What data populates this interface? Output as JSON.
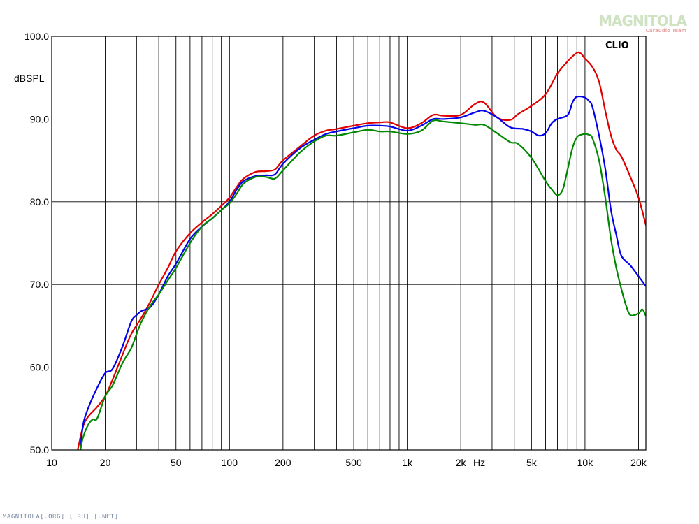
{
  "chart_data": {
    "type": "line",
    "brand": "CLIO",
    "ylabel": "dBSPL",
    "xunit": "Hz",
    "xscale": "log",
    "xlim": [
      10,
      22000
    ],
    "ylim": [
      50,
      100
    ],
    "grid": true,
    "x_ticks": [
      {
        "value": 10,
        "label": "10"
      },
      {
        "value": 20,
        "label": "20"
      },
      {
        "value": 50,
        "label": "50"
      },
      {
        "value": 100,
        "label": "100"
      },
      {
        "value": 200,
        "label": "200"
      },
      {
        "value": 500,
        "label": "500"
      },
      {
        "value": 1000,
        "label": "1k"
      },
      {
        "value": 2000,
        "label": "2k"
      },
      {
        "value": 5000,
        "label": "5k"
      },
      {
        "value": 10000,
        "label": "10k"
      },
      {
        "value": 20000,
        "label": "20k"
      }
    ],
    "y_ticks": [
      {
        "value": 50,
        "label": "50.0"
      },
      {
        "value": 60,
        "label": "60.0"
      },
      {
        "value": 70,
        "label": "70.0"
      },
      {
        "value": 80,
        "label": "80.0"
      },
      {
        "value": 90,
        "label": "90.0"
      },
      {
        "value": 100,
        "label": "100.0"
      }
    ],
    "series": [
      {
        "color": "#e00000",
        "x": [
          14,
          15,
          16,
          18,
          20,
          22,
          25,
          28,
          32,
          36,
          40,
          45,
          50,
          60,
          70,
          80,
          90,
          100,
          110,
          120,
          140,
          160,
          180,
          200,
          250,
          300,
          350,
          400,
          500,
          600,
          700,
          800,
          1000,
          1200,
          1400,
          1600,
          2000,
          2400,
          2700,
          3200,
          3800,
          4200,
          5000,
          6000,
          7000,
          8000,
          9000,
          9500,
          10000,
          11000,
          12000,
          13000,
          14000,
          15000,
          16000,
          18000,
          20000,
          22000
        ],
        "y": [
          50,
          52.8,
          54,
          55.2,
          56.5,
          58.5,
          61.5,
          64,
          66,
          68,
          70,
          72,
          74,
          76.2,
          77.5,
          78.5,
          79.5,
          80.5,
          81.8,
          82.8,
          83.6,
          83.7,
          83.9,
          85,
          86.7,
          88,
          88.6,
          88.8,
          89.2,
          89.5,
          89.6,
          89.6,
          88.9,
          89.5,
          90.5,
          90.4,
          90.5,
          91.8,
          92,
          90.2,
          89.9,
          90.6,
          91.6,
          93,
          95.5,
          97,
          98,
          97.9,
          97.3,
          96.3,
          94.5,
          91,
          88,
          86.3,
          85.5,
          83,
          80.5,
          77.2
        ]
      },
      {
        "color": "#0000ee",
        "x": [
          14.5,
          15,
          16,
          18,
          20,
          22,
          25,
          28,
          30,
          32,
          36,
          40,
          45,
          50,
          60,
          70,
          80,
          90,
          100,
          110,
          120,
          140,
          160,
          180,
          200,
          250,
          300,
          350,
          400,
          500,
          600,
          700,
          800,
          1000,
          1200,
          1400,
          1600,
          2000,
          2400,
          2700,
          3200,
          3800,
          4500,
          5000,
          5500,
          6000,
          6500,
          7000,
          8000,
          8500,
          9000,
          10000,
          10500,
          11000,
          12000,
          13000,
          14000,
          15000,
          16000,
          18000,
          20000,
          22000
        ],
        "y": [
          50,
          53,
          55,
          57.5,
          59.3,
          59.8,
          62.5,
          65.5,
          66.3,
          66.8,
          67.3,
          68.8,
          71,
          72.5,
          75.5,
          77,
          78,
          79,
          80,
          81.5,
          82.5,
          83.1,
          83.2,
          83.3,
          84.6,
          86.5,
          87.5,
          88.2,
          88.5,
          88.9,
          89.2,
          89.2,
          89.1,
          88.6,
          89.2,
          90,
          90,
          90.2,
          90.8,
          91,
          90.2,
          89,
          88.8,
          88.5,
          88,
          88.3,
          89.5,
          90,
          90.5,
          92,
          92.7,
          92.6,
          92.2,
          91.5,
          88,
          84,
          79,
          76,
          73.5,
          72.3,
          71,
          69.8
        ]
      },
      {
        "color": "#008800",
        "x": [
          14.5,
          15,
          16,
          17,
          18,
          20,
          22,
          25,
          28,
          30,
          32,
          36,
          40,
          45,
          50,
          60,
          70,
          80,
          90,
          100,
          110,
          120,
          140,
          160,
          180,
          200,
          250,
          300,
          350,
          400,
          500,
          600,
          700,
          800,
          1000,
          1200,
          1400,
          1600,
          2000,
          2400,
          2700,
          3200,
          3800,
          4200,
          5000,
          6000,
          6500,
          7000,
          7500,
          8000,
          8500,
          9000,
          9500,
          10000,
          10500,
          11000,
          12000,
          13000,
          14000,
          15000,
          16000,
          17000,
          18000,
          20000,
          21000,
          22000
        ],
        "y": [
          50,
          51.5,
          53,
          53.7,
          53.8,
          56.5,
          57.8,
          60.5,
          62.3,
          64,
          65.5,
          67.5,
          68.8,
          70.5,
          72,
          75,
          77,
          78,
          79,
          79.8,
          81,
          82.2,
          83,
          83,
          82.8,
          83.8,
          86,
          87.3,
          88,
          88,
          88.4,
          88.7,
          88.5,
          88.5,
          88.2,
          88.6,
          89.8,
          89.7,
          89.5,
          89.3,
          89.3,
          88.3,
          87.2,
          87,
          85.3,
          82.5,
          81.5,
          80.8,
          81.5,
          84,
          86.5,
          87.8,
          88.1,
          88.2,
          88.1,
          87.7,
          85,
          80.5,
          75.5,
          72,
          69.5,
          67.5,
          66.3,
          66.5,
          67,
          66.2
        ]
      }
    ]
  },
  "watermark": {
    "logo_text": "MAGNITOLA",
    "logo_sub": "Caraudio Team",
    "footer": "MAGNITOLA[.ORG] [.RU] [.NET]"
  }
}
